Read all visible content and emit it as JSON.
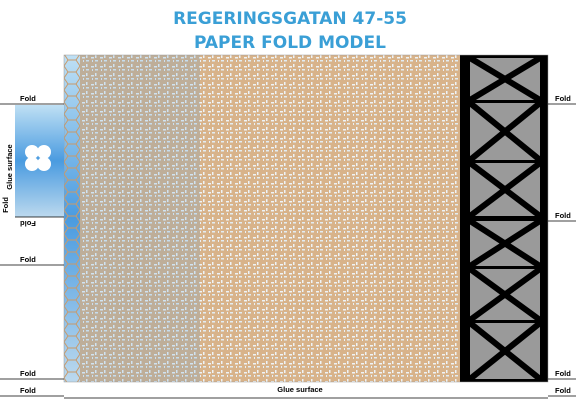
{
  "title": {
    "line1": "REGERINGSGATAN 47-55",
    "line2": "PAPER FOLD MODEL"
  },
  "left_tab": {
    "label": "Glue surface",
    "fold_side": "Fold",
    "fold_bottom": "Fold"
  },
  "fold_labels_left": [
    "Fold",
    "Fold",
    "Fold",
    "Fold"
  ],
  "fold_labels_right": [
    "Fold",
    "Fold",
    "Fold",
    "Fold"
  ],
  "bottom_glue": "Glue surface"
}
